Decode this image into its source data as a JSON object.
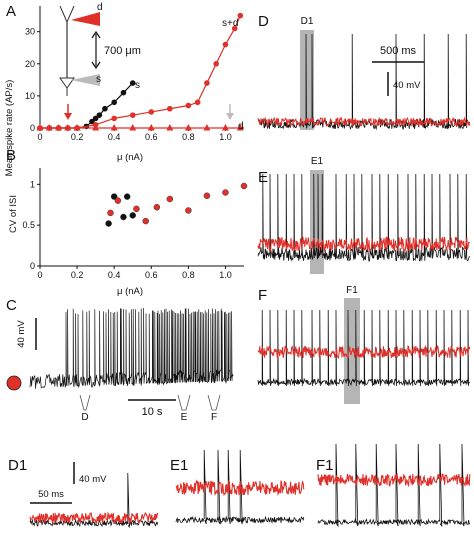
{
  "colors": {
    "red": "#e0302a",
    "black": "#111111",
    "grey": "#aaaaaa",
    "shade": "#b5b5b5"
  },
  "panel_labels": [
    "A",
    "B",
    "C",
    "D",
    "E",
    "F",
    "D1",
    "E1",
    "F1"
  ],
  "panel_a": {
    "ylabel": "Mean spike rate (AP/s)",
    "xlabel": "μ (nA)",
    "yticks": [
      "0",
      "10",
      "20",
      "30"
    ],
    "xticks": [
      "0",
      "0.2",
      "0.4",
      "0.6",
      "0.8",
      "1.0"
    ],
    "distance_label": "700 μm",
    "label_d": "d",
    "label_s": "s",
    "label_sd": "s+d",
    "label_s_curve": "s",
    "label_d_curve": "d"
  },
  "panel_b": {
    "ylabel": "CV of ISI",
    "xlabel": "μ (nA)",
    "yticks": [
      "0",
      "0.5",
      "1"
    ],
    "xticks": [
      "0",
      "0.2",
      "0.4",
      "0.6",
      "0.8",
      "1.0"
    ]
  },
  "panel_c": {
    "scale_v": "40 mV",
    "scale_t": "10 s",
    "markers": [
      "D",
      "E",
      "F"
    ]
  },
  "panel_d": {
    "box": "D1",
    "scale_t": "500 ms",
    "scale_v": "40 mV"
  },
  "panel_e": {
    "box": "E1"
  },
  "panel_f": {
    "box": "F1"
  },
  "panel_d1": {
    "scale_t": "50 ms",
    "scale_v": "40 mV"
  },
  "chart_data": [
    {
      "type": "line",
      "panel": "A",
      "xlabel": "μ (nA)",
      "ylabel": "Mean spike rate (AP/s)",
      "xlim": [
        0,
        1.1
      ],
      "ylim": [
        0,
        38
      ],
      "series": [
        {
          "name": "s",
          "color": "black",
          "x": [
            0.0,
            0.05,
            0.1,
            0.15,
            0.2,
            0.25,
            0.28,
            0.3,
            0.32,
            0.35,
            0.4,
            0.45,
            0.5
          ],
          "y": [
            0,
            0,
            0,
            0,
            0,
            0.5,
            2,
            3,
            4,
            6,
            8,
            11,
            14
          ]
        },
        {
          "name": "s+d",
          "color": "red",
          "x": [
            0.0,
            0.05,
            0.1,
            0.15,
            0.2,
            0.3,
            0.4,
            0.5,
            0.6,
            0.7,
            0.8,
            0.85,
            0.9,
            0.95,
            1.0,
            1.05,
            1.08
          ],
          "y": [
            0,
            0,
            0,
            0,
            0,
            1,
            3,
            4,
            5,
            6,
            7,
            8,
            14,
            20,
            26,
            31,
            35
          ]
        },
        {
          "name": "d",
          "color": "red",
          "marker": "triangle",
          "x": [
            0.0,
            0.05,
            0.1,
            0.15,
            0.2,
            0.3,
            0.4,
            0.5,
            0.6,
            0.7,
            0.8,
            0.9,
            1.0,
            1.08
          ],
          "y": [
            0,
            0,
            0,
            0,
            0,
            0,
            0,
            0,
            0,
            0,
            0,
            0,
            0,
            0
          ]
        }
      ]
    },
    {
      "type": "scatter",
      "panel": "B",
      "xlabel": "μ (nA)",
      "ylabel": "CV of ISI",
      "xlim": [
        0,
        1.1
      ],
      "ylim": [
        0,
        1.2
      ],
      "series": [
        {
          "name": "s",
          "color": "black",
          "x": [
            0.37,
            0.4,
            0.45,
            0.47,
            0.5
          ],
          "y": [
            0.52,
            0.85,
            0.6,
            0.85,
            0.62
          ]
        },
        {
          "name": "s+d",
          "color": "red",
          "x": [
            0.38,
            0.42,
            0.52,
            0.57,
            0.63,
            0.7,
            0.8,
            0.9,
            1.0,
            1.1
          ],
          "y": [
            0.65,
            0.8,
            0.7,
            0.55,
            0.72,
            0.82,
            0.68,
            0.86,
            0.9,
            0.98
          ]
        }
      ]
    }
  ]
}
